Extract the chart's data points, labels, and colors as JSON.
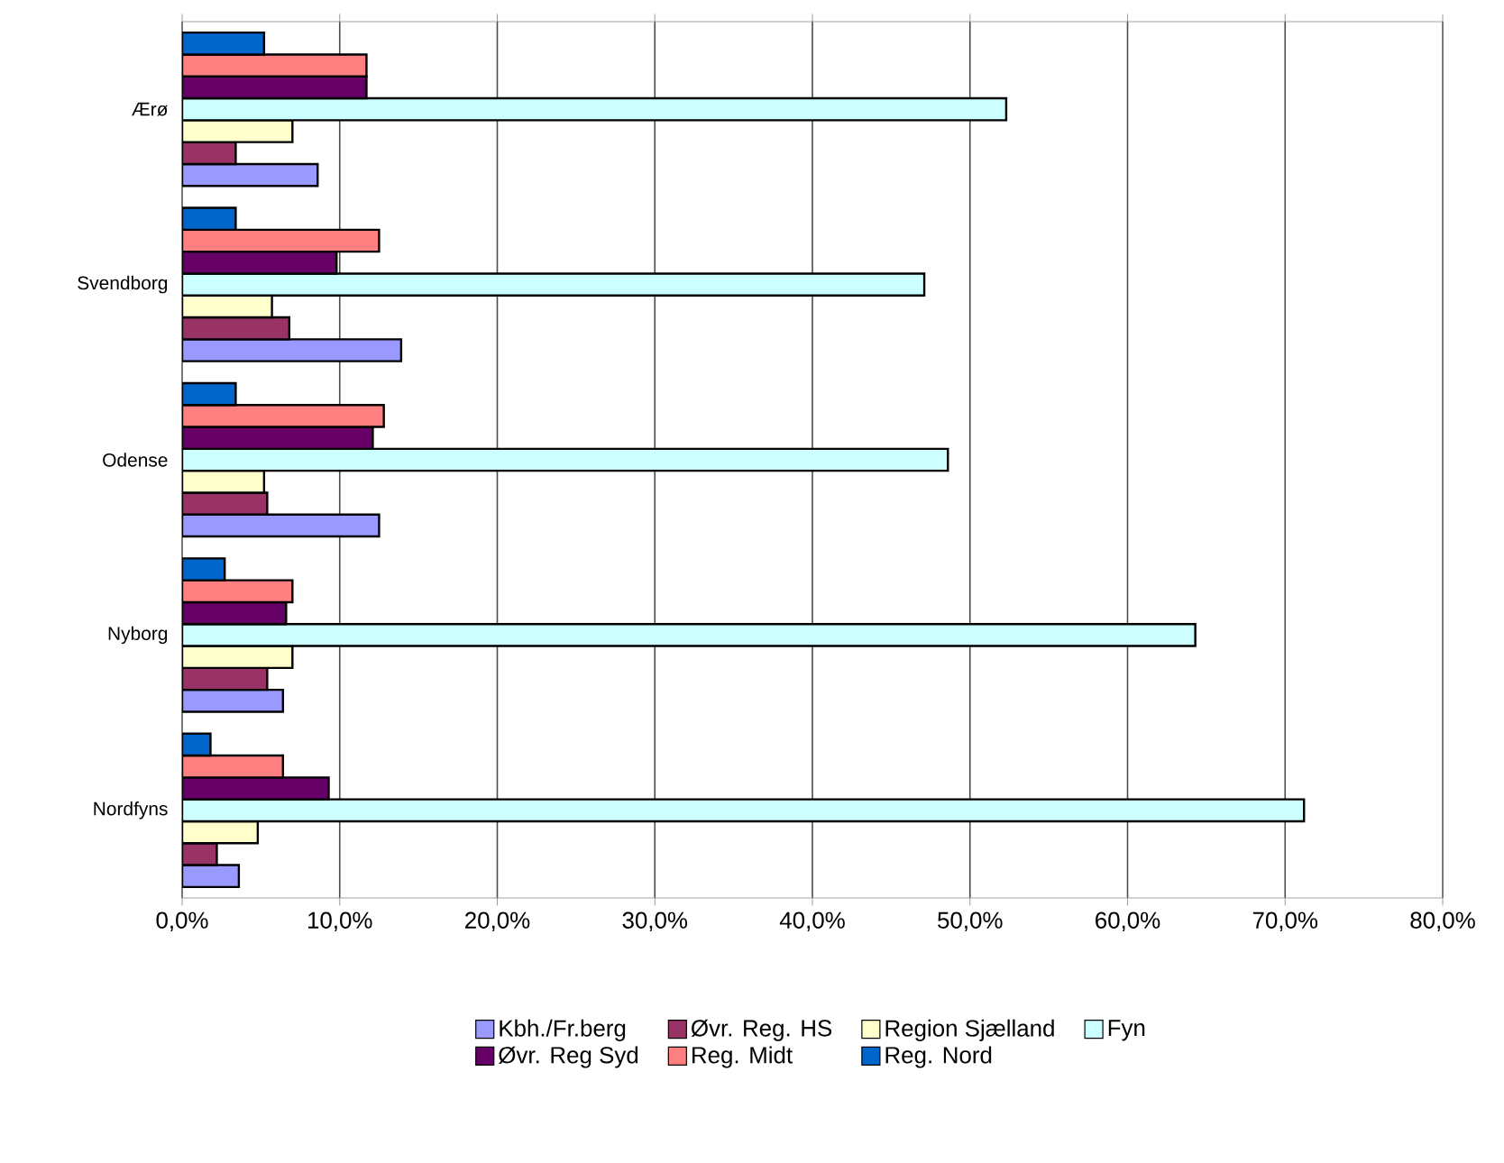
{
  "chart_data": {
    "type": "bar",
    "orientation": "horizontal",
    "categories": [
      "Ærø",
      "Svendborg",
      "Odense",
      "Nyborg",
      "Nordfyns"
    ],
    "series": [
      {
        "name": "Kbh./Fr.berg",
        "color": "#9999ff",
        "values": [
          8.6,
          13.9,
          12.5,
          6.4,
          3.6
        ]
      },
      {
        "name": "Øvr. Reg. HS",
        "color": "#993366",
        "values": [
          3.4,
          6.8,
          5.4,
          5.4,
          2.2
        ]
      },
      {
        "name": "Region Sjælland",
        "color": "#ffffcc",
        "values": [
          7.0,
          5.7,
          5.2,
          7.0,
          4.8
        ]
      },
      {
        "name": "Fyn",
        "color": "#ccffff",
        "values": [
          52.3,
          47.1,
          48.6,
          64.3,
          71.2
        ]
      },
      {
        "name": "Øvr. Reg Syd",
        "color": "#660066",
        "values": [
          11.7,
          9.8,
          12.1,
          6.6,
          9.3
        ]
      },
      {
        "name": "Reg. Midt",
        "color": "#ff8080",
        "values": [
          11.7,
          12.5,
          12.8,
          7.0,
          6.4
        ]
      },
      {
        "name": "Reg. Nord",
        "color": "#0066cc",
        "values": [
          5.2,
          3.4,
          3.4,
          2.7,
          1.8
        ]
      }
    ],
    "xlim": [
      0,
      80
    ],
    "xticks": [
      {
        "value": 0,
        "label": "0,0%"
      },
      {
        "value": 10,
        "label": "10,0%"
      },
      {
        "value": 20,
        "label": "20,0%"
      },
      {
        "value": 30,
        "label": "30,0%"
      },
      {
        "value": 40,
        "label": "40,0%"
      },
      {
        "value": 50,
        "label": "50,0%"
      },
      {
        "value": 60,
        "label": "60,0%"
      },
      {
        "value": 70,
        "label": "70,0%"
      },
      {
        "value": 80,
        "label": "80,0%"
      }
    ],
    "grid": "x",
    "legend": "bottom"
  }
}
